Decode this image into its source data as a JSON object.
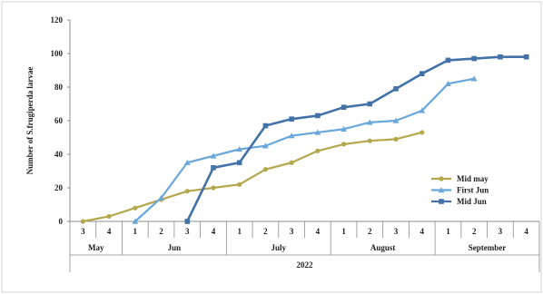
{
  "chart_data": {
    "type": "line",
    "title": "",
    "ylabel": "Number of S.frugiperda larvae",
    "xlabel": "2022",
    "ylim": [
      0,
      120
    ],
    "yticks": [
      "0",
      "20",
      "40",
      "60",
      "80",
      "100",
      "120"
    ],
    "grid": false,
    "legend_position": "right",
    "months": [
      {
        "name": "May",
        "weeks": [
          "3",
          "4"
        ]
      },
      {
        "name": "Jun",
        "weeks": [
          "1",
          "2",
          "3",
          "4"
        ]
      },
      {
        "name": "July",
        "weeks": [
          "1",
          "2",
          "3",
          "4"
        ]
      },
      {
        "name": "August",
        "weeks": [
          "1",
          "2",
          "3",
          "4"
        ]
      },
      {
        "name": "September",
        "weeks": [
          "1",
          "2",
          "3",
          "4"
        ]
      }
    ],
    "series": [
      {
        "name": "Mid may",
        "color": "#b3a84e",
        "marker": "circle",
        "values": [
          0,
          3,
          8,
          13,
          18,
          20,
          22,
          31,
          35,
          42,
          46,
          48,
          49,
          53,
          null,
          null,
          null,
          null
        ]
      },
      {
        "name": "First Jun",
        "color": "#6aa7da",
        "marker": "triangle",
        "values": [
          null,
          null,
          0,
          14,
          35,
          39,
          43,
          45,
          51,
          53,
          55,
          59,
          60,
          66,
          82,
          85,
          null,
          null
        ]
      },
      {
        "name": "Mid Jun",
        "color": "#4372a8",
        "marker": "square",
        "values": [
          null,
          null,
          null,
          null,
          0,
          32,
          35,
          57,
          61,
          63,
          68,
          70,
          79,
          88,
          96,
          97,
          98,
          98
        ]
      }
    ]
  },
  "colors": {
    "axis": "#8c8c8c",
    "border": "#cfcfcf"
  }
}
